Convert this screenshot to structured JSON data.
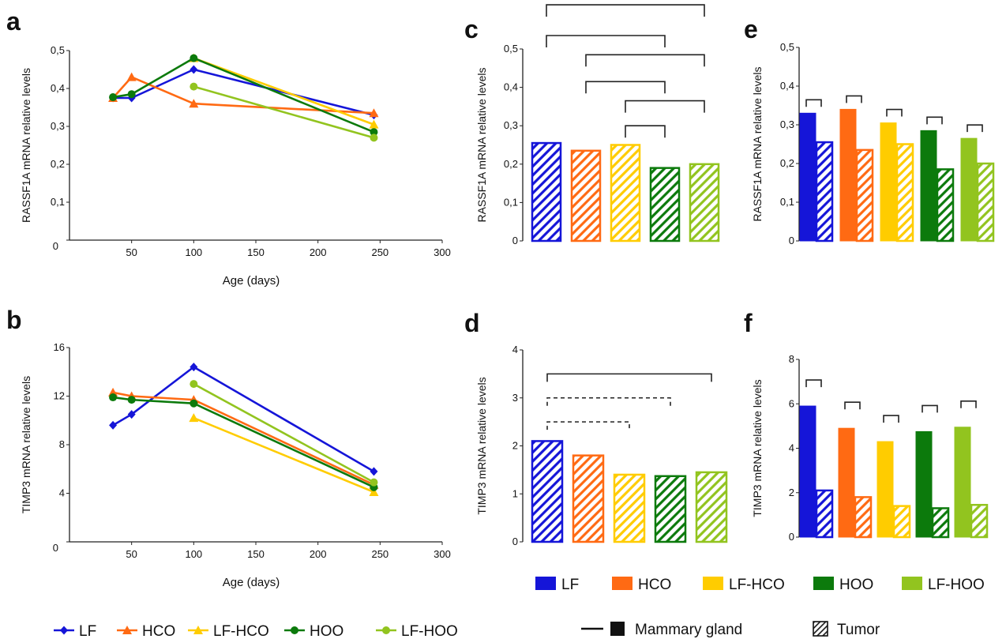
{
  "palette": {
    "LF": "#1515d8",
    "HCO": "#ff6a13",
    "LF-HCO": "#ffcc00",
    "HOO": "#0c7a0c",
    "LF-HOO": "#92c41f"
  },
  "chart_data": [
    {
      "id": "a",
      "panel": "a",
      "type": "line",
      "xlabel": "Age (days)",
      "ylabel": "RASSF1A mRNA relative levels",
      "xlim": [
        0,
        300
      ],
      "ylim": [
        0,
        0.5
      ],
      "xticks": [
        "50",
        "100",
        "150",
        "200",
        "250",
        "300"
      ],
      "yticks": [
        "0",
        "0,1",
        "0,2",
        "0,3",
        "0,4",
        "0,5"
      ],
      "series": [
        {
          "name": "LF",
          "marker": "diamond",
          "points": [
            [
              35,
              0.375
            ],
            [
              50,
              0.375
            ],
            [
              100,
              0.45
            ],
            [
              245,
              0.33
            ]
          ]
        },
        {
          "name": "HCO",
          "marker": "triangle",
          "points": [
            [
              35,
              0.375
            ],
            [
              50,
              0.43
            ],
            [
              100,
              0.36
            ],
            [
              245,
              0.335
            ]
          ]
        },
        {
          "name": "LF-HCO",
          "marker": "triangle",
          "points": [
            [
              100,
              0.48
            ],
            [
              245,
              0.305
            ]
          ]
        },
        {
          "name": "HOO",
          "marker": "circle",
          "points": [
            [
              35,
              0.377
            ],
            [
              50,
              0.385
            ],
            [
              100,
              0.48
            ],
            [
              245,
              0.285
            ]
          ]
        },
        {
          "name": "LF-HOO",
          "marker": "circle",
          "points": [
            [
              100,
              0.405
            ],
            [
              245,
              0.27
            ]
          ]
        }
      ]
    },
    {
      "id": "b",
      "panel": "b",
      "type": "line",
      "xlabel": "Age (days)",
      "ylabel": "TIMP3  mRNA relative levels",
      "xlim": [
        0,
        300
      ],
      "ylim": [
        0,
        16
      ],
      "xticks": [
        "50",
        "100",
        "150",
        "200",
        "250",
        "300"
      ],
      "yticks": [
        "0",
        "4",
        "8",
        "12",
        "16"
      ],
      "series": [
        {
          "name": "LF",
          "marker": "diamond",
          "points": [
            [
              35,
              9.6
            ],
            [
              50,
              10.5
            ],
            [
              100,
              14.4
            ],
            [
              245,
              5.8
            ]
          ]
        },
        {
          "name": "HCO",
          "marker": "triangle",
          "points": [
            [
              35,
              12.3
            ],
            [
              50,
              12.0
            ],
            [
              100,
              11.7
            ],
            [
              245,
              4.7
            ]
          ]
        },
        {
          "name": "LF-HCO",
          "marker": "triangle",
          "points": [
            [
              100,
              10.2
            ],
            [
              245,
              4.1
            ]
          ]
        },
        {
          "name": "HOO",
          "marker": "circle",
          "points": [
            [
              35,
              11.9
            ],
            [
              50,
              11.7
            ],
            [
              100,
              11.4
            ],
            [
              245,
              4.5
            ]
          ]
        },
        {
          "name": "LF-HOO",
          "marker": "circle",
          "points": [
            [
              100,
              13.0
            ],
            [
              245,
              4.9
            ]
          ]
        }
      ]
    },
    {
      "id": "c",
      "panel": "c",
      "type": "bar",
      "ylabel": "RASSF1A mRNA relative levels",
      "ylim": [
        0,
        0.5
      ],
      "yticks": [
        "0",
        "0,1",
        "0,2",
        "0,3",
        "0,4",
        "0,5"
      ],
      "categories": [
        "LF",
        "HCO",
        "LF-HCO",
        "HOO",
        "LF-HOO"
      ],
      "values": [
        0.255,
        0.235,
        0.25,
        0.19,
        0.2
      ],
      "brackets": [
        {
          "from": 0,
          "to": 4,
          "y": 0.615,
          "dashed": false
        },
        {
          "from": 0,
          "to": 3,
          "y": 0.535,
          "dashed": false
        },
        {
          "from": 1,
          "to": 4,
          "y": 0.485,
          "dashed": false
        },
        {
          "from": 1,
          "to": 3,
          "y": 0.415,
          "dashed": false
        },
        {
          "from": 2,
          "to": 4,
          "y": 0.365,
          "dashed": false
        },
        {
          "from": 2,
          "to": 3,
          "y": 0.3,
          "dashed": false
        }
      ]
    },
    {
      "id": "d",
      "panel": "d",
      "type": "bar",
      "ylabel": "TIMP3  mRNA relative levels",
      "ylim": [
        0,
        4
      ],
      "yticks": [
        "0",
        "1",
        "2",
        "3",
        "4"
      ],
      "categories": [
        "LF",
        "HCO",
        "LF-HCO",
        "HOO",
        "LF-HOO"
      ],
      "values": [
        2.1,
        1.8,
        1.4,
        1.37,
        1.45
      ],
      "brackets": [
        {
          "from": 0,
          "to": 4,
          "y": 3.5,
          "dashed": false
        },
        {
          "from": 0,
          "to": 3,
          "y": 3.0,
          "dashed": true
        },
        {
          "from": 0,
          "to": 2,
          "y": 2.5,
          "dashed": true
        }
      ]
    },
    {
      "id": "e",
      "panel": "e",
      "type": "bar",
      "ylabel": "RASSF1A mRNA relative levels",
      "ylim": [
        0,
        0.5
      ],
      "yticks": [
        "0",
        "0,1",
        "0,2",
        "0,3",
        "0,4",
        "0,5"
      ],
      "categories": [
        "LF",
        "HCO",
        "LF-HCO",
        "HOO",
        "LF-HOO"
      ],
      "series": [
        {
          "name": "Mammary gland",
          "values": [
            0.33,
            0.34,
            0.305,
            0.285,
            0.265
          ]
        },
        {
          "name": "Tumor",
          "values": [
            0.255,
            0.235,
            0.25,
            0.185,
            0.2
          ]
        }
      ]
    },
    {
      "id": "f",
      "panel": "f",
      "type": "bar",
      "ylabel": "TIMP3  mRNA relative levels",
      "ylim": [
        0,
        8
      ],
      "yticks": [
        "0",
        "2",
        "4",
        "6",
        "8"
      ],
      "categories": [
        "LF",
        "HCO",
        "LF-HCO",
        "HOO",
        "LF-HOO"
      ],
      "series": [
        {
          "name": "Mammary gland",
          "values": [
            5.9,
            4.9,
            4.3,
            4.75,
            4.95
          ]
        },
        {
          "name": "Tumor",
          "values": [
            2.1,
            1.8,
            1.4,
            1.3,
            1.45
          ]
        }
      ]
    }
  ],
  "legends": {
    "lines": [
      "LF",
      "HCO",
      "LF-HCO",
      "HOO",
      "LF-HOO"
    ],
    "bars": [
      "LF",
      "HCO",
      "LF-HCO",
      "HOO",
      "LF-HOO"
    ],
    "tissue": {
      "solid": "Mammary  gland",
      "hatched": "Tumor"
    }
  }
}
